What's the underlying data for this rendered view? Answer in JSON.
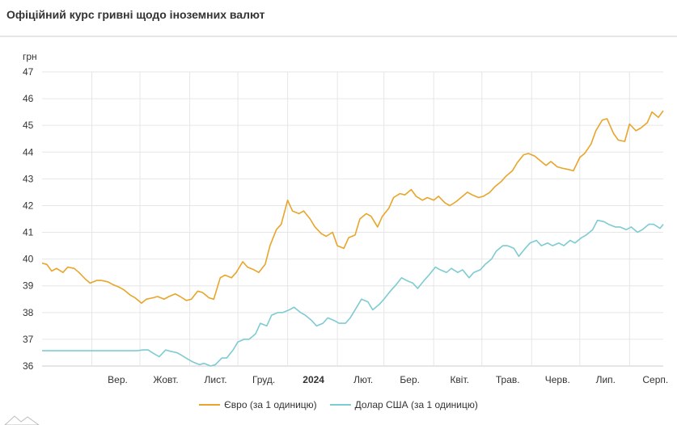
{
  "title": "Офіційний курс гривні щодо іноземних валют",
  "colors": {
    "euro": "#E8A52A",
    "usd": "#7ECBD2",
    "grid": "#e6e6e6"
  },
  "chart_data": {
    "type": "line",
    "ylabel": "грн",
    "ylim": [
      36,
      47
    ],
    "yticks": [
      36,
      37,
      38,
      39,
      40,
      41,
      42,
      43,
      44,
      45,
      46,
      47
    ],
    "x_range": [
      "2023-08-01",
      "2024-08-22"
    ],
    "x_ticks": [
      {
        "date": "2023-09-01",
        "label": "Вер.",
        "bold": false
      },
      {
        "date": "2023-10-01",
        "label": "Жовт.",
        "bold": false
      },
      {
        "date": "2023-11-01",
        "label": "Лист.",
        "bold": false
      },
      {
        "date": "2023-12-01",
        "label": "Груд.",
        "bold": false
      },
      {
        "date": "2024-01-01",
        "label": "2024",
        "bold": true
      },
      {
        "date": "2024-02-01",
        "label": "Лют.",
        "bold": false
      },
      {
        "date": "2024-03-01",
        "label": "Бер.",
        "bold": false
      },
      {
        "date": "2024-04-01",
        "label": "Квіт.",
        "bold": false
      },
      {
        "date": "2024-05-01",
        "label": "Трав.",
        "bold": false
      },
      {
        "date": "2024-06-01",
        "label": "Черв.",
        "bold": false
      },
      {
        "date": "2024-07-01",
        "label": "Лип.",
        "bold": false
      },
      {
        "date": "2024-08-01",
        "label": "Серп.",
        "bold": false
      }
    ],
    "series": [
      {
        "name": "Євро (за 1 одиницю)",
        "color": "#E8A52A",
        "points": [
          [
            "2023-08-01",
            39.85
          ],
          [
            "2023-08-04",
            39.8
          ],
          [
            "2023-08-07",
            39.55
          ],
          [
            "2023-08-10",
            39.65
          ],
          [
            "2023-08-14",
            39.5
          ],
          [
            "2023-08-17",
            39.7
          ],
          [
            "2023-08-21",
            39.65
          ],
          [
            "2023-08-24",
            39.5
          ],
          [
            "2023-08-28",
            39.25
          ],
          [
            "2023-08-31",
            39.1
          ],
          [
            "2023-09-04",
            39.2
          ],
          [
            "2023-09-07",
            39.2
          ],
          [
            "2023-09-11",
            39.15
          ],
          [
            "2023-09-14",
            39.05
          ],
          [
            "2023-09-18",
            38.95
          ],
          [
            "2023-09-21",
            38.85
          ],
          [
            "2023-09-25",
            38.65
          ],
          [
            "2023-09-28",
            38.55
          ],
          [
            "2023-10-02",
            38.35
          ],
          [
            "2023-10-05",
            38.5
          ],
          [
            "2023-10-09",
            38.55
          ],
          [
            "2023-10-12",
            38.6
          ],
          [
            "2023-10-16",
            38.5
          ],
          [
            "2023-10-19",
            38.6
          ],
          [
            "2023-10-23",
            38.7
          ],
          [
            "2023-10-26",
            38.6
          ],
          [
            "2023-10-30",
            38.45
          ],
          [
            "2023-11-02",
            38.5
          ],
          [
            "2023-11-06",
            38.8
          ],
          [
            "2023-11-09",
            38.75
          ],
          [
            "2023-11-13",
            38.55
          ],
          [
            "2023-11-16",
            38.5
          ],
          [
            "2023-11-20",
            39.3
          ],
          [
            "2023-11-23",
            39.4
          ],
          [
            "2023-11-27",
            39.3
          ],
          [
            "2023-11-30",
            39.5
          ],
          [
            "2023-12-04",
            39.9
          ],
          [
            "2023-12-07",
            39.7
          ],
          [
            "2023-12-11",
            39.6
          ],
          [
            "2023-12-14",
            39.5
          ],
          [
            "2023-12-18",
            39.8
          ],
          [
            "2023-12-21",
            40.5
          ],
          [
            "2023-12-25",
            41.1
          ],
          [
            "2023-12-28",
            41.3
          ],
          [
            "2024-01-01",
            42.2
          ],
          [
            "2024-01-04",
            41.8
          ],
          [
            "2024-01-08",
            41.7
          ],
          [
            "2024-01-11",
            41.8
          ],
          [
            "2024-01-15",
            41.5
          ],
          [
            "2024-01-18",
            41.2
          ],
          [
            "2024-01-22",
            40.95
          ],
          [
            "2024-01-25",
            40.85
          ],
          [
            "2024-01-29",
            41.0
          ],
          [
            "2024-02-01",
            40.5
          ],
          [
            "2024-02-05",
            40.4
          ],
          [
            "2024-02-08",
            40.8
          ],
          [
            "2024-02-12",
            40.9
          ],
          [
            "2024-02-15",
            41.5
          ],
          [
            "2024-02-19",
            41.7
          ],
          [
            "2024-02-22",
            41.6
          ],
          [
            "2024-02-26",
            41.2
          ],
          [
            "2024-02-29",
            41.6
          ],
          [
            "2024-03-04",
            41.9
          ],
          [
            "2024-03-07",
            42.3
          ],
          [
            "2024-03-11",
            42.45
          ],
          [
            "2024-03-14",
            42.4
          ],
          [
            "2024-03-18",
            42.6
          ],
          [
            "2024-03-21",
            42.35
          ],
          [
            "2024-03-25",
            42.2
          ],
          [
            "2024-03-28",
            42.3
          ],
          [
            "2024-04-01",
            42.2
          ],
          [
            "2024-04-04",
            42.35
          ],
          [
            "2024-04-08",
            42.1
          ],
          [
            "2024-04-11",
            42.0
          ],
          [
            "2024-04-15",
            42.15
          ],
          [
            "2024-04-18",
            42.3
          ],
          [
            "2024-04-22",
            42.5
          ],
          [
            "2024-04-25",
            42.4
          ],
          [
            "2024-04-29",
            42.3
          ],
          [
            "2024-05-02",
            42.35
          ],
          [
            "2024-05-06",
            42.5
          ],
          [
            "2024-05-09",
            42.7
          ],
          [
            "2024-05-13",
            42.9
          ],
          [
            "2024-05-16",
            43.1
          ],
          [
            "2024-05-20",
            43.3
          ],
          [
            "2024-05-23",
            43.6
          ],
          [
            "2024-05-27",
            43.9
          ],
          [
            "2024-05-30",
            43.95
          ],
          [
            "2024-06-03",
            43.85
          ],
          [
            "2024-06-06",
            43.7
          ],
          [
            "2024-06-10",
            43.5
          ],
          [
            "2024-06-13",
            43.65
          ],
          [
            "2024-06-17",
            43.45
          ],
          [
            "2024-06-20",
            43.4
          ],
          [
            "2024-06-24",
            43.35
          ],
          [
            "2024-06-27",
            43.3
          ],
          [
            "2024-07-01",
            43.8
          ],
          [
            "2024-07-04",
            43.95
          ],
          [
            "2024-07-08",
            44.3
          ],
          [
            "2024-07-11",
            44.8
          ],
          [
            "2024-07-15",
            45.2
          ],
          [
            "2024-07-18",
            45.25
          ],
          [
            "2024-07-22",
            44.7
          ],
          [
            "2024-07-25",
            44.45
          ],
          [
            "2024-07-29",
            44.4
          ],
          [
            "2024-08-01",
            45.05
          ],
          [
            "2024-08-05",
            44.8
          ],
          [
            "2024-08-08",
            44.9
          ],
          [
            "2024-08-12",
            45.1
          ],
          [
            "2024-08-15",
            45.5
          ],
          [
            "2024-08-19",
            45.3
          ],
          [
            "2024-08-22",
            45.55
          ]
        ]
      },
      {
        "name": "Долар США (за 1 одиницю)",
        "color": "#7ECBD2",
        "points": [
          [
            "2023-08-01",
            36.57
          ],
          [
            "2023-08-20",
            36.57
          ],
          [
            "2023-09-10",
            36.57
          ],
          [
            "2023-09-29",
            36.57
          ],
          [
            "2023-10-03",
            36.6
          ],
          [
            "2023-10-06",
            36.6
          ],
          [
            "2023-10-10",
            36.45
          ],
          [
            "2023-10-13",
            36.35
          ],
          [
            "2023-10-17",
            36.6
          ],
          [
            "2023-10-20",
            36.55
          ],
          [
            "2023-10-24",
            36.5
          ],
          [
            "2023-10-27",
            36.4
          ],
          [
            "2023-10-31",
            36.25
          ],
          [
            "2023-11-03",
            36.15
          ],
          [
            "2023-11-07",
            36.05
          ],
          [
            "2023-11-10",
            36.1
          ],
          [
            "2023-11-14",
            36.0
          ],
          [
            "2023-11-17",
            36.05
          ],
          [
            "2023-11-21",
            36.3
          ],
          [
            "2023-11-24",
            36.3
          ],
          [
            "2023-11-28",
            36.6
          ],
          [
            "2023-12-01",
            36.9
          ],
          [
            "2023-12-05",
            37.0
          ],
          [
            "2023-12-08",
            37.0
          ],
          [
            "2023-12-12",
            37.2
          ],
          [
            "2023-12-15",
            37.6
          ],
          [
            "2023-12-19",
            37.5
          ],
          [
            "2023-12-22",
            37.9
          ],
          [
            "2023-12-26",
            38.0
          ],
          [
            "2023-12-29",
            38.0
          ],
          [
            "2024-01-02",
            38.1
          ],
          [
            "2024-01-05",
            38.2
          ],
          [
            "2024-01-09",
            38.0
          ],
          [
            "2024-01-12",
            37.9
          ],
          [
            "2024-01-16",
            37.7
          ],
          [
            "2024-01-19",
            37.5
          ],
          [
            "2024-01-23",
            37.6
          ],
          [
            "2024-01-26",
            37.8
          ],
          [
            "2024-01-30",
            37.7
          ],
          [
            "2024-02-02",
            37.6
          ],
          [
            "2024-02-06",
            37.6
          ],
          [
            "2024-02-09",
            37.8
          ],
          [
            "2024-02-13",
            38.2
          ],
          [
            "2024-02-16",
            38.5
          ],
          [
            "2024-02-20",
            38.4
          ],
          [
            "2024-02-23",
            38.1
          ],
          [
            "2024-02-27",
            38.3
          ],
          [
            "2024-03-01",
            38.5
          ],
          [
            "2024-03-05",
            38.8
          ],
          [
            "2024-03-08",
            39.0
          ],
          [
            "2024-03-12",
            39.3
          ],
          [
            "2024-03-15",
            39.2
          ],
          [
            "2024-03-19",
            39.1
          ],
          [
            "2024-03-22",
            38.9
          ],
          [
            "2024-03-26",
            39.2
          ],
          [
            "2024-03-29",
            39.4
          ],
          [
            "2024-04-02",
            39.7
          ],
          [
            "2024-04-05",
            39.6
          ],
          [
            "2024-04-09",
            39.5
          ],
          [
            "2024-04-12",
            39.65
          ],
          [
            "2024-04-16",
            39.5
          ],
          [
            "2024-04-19",
            39.6
          ],
          [
            "2024-04-23",
            39.3
          ],
          [
            "2024-04-26",
            39.5
          ],
          [
            "2024-04-30",
            39.6
          ],
          [
            "2024-05-03",
            39.8
          ],
          [
            "2024-05-07",
            40.0
          ],
          [
            "2024-05-10",
            40.3
          ],
          [
            "2024-05-14",
            40.5
          ],
          [
            "2024-05-17",
            40.5
          ],
          [
            "2024-05-21",
            40.4
          ],
          [
            "2024-05-24",
            40.1
          ],
          [
            "2024-05-28",
            40.4
          ],
          [
            "2024-05-31",
            40.6
          ],
          [
            "2024-06-04",
            40.7
          ],
          [
            "2024-06-07",
            40.5
          ],
          [
            "2024-06-11",
            40.6
          ],
          [
            "2024-06-14",
            40.5
          ],
          [
            "2024-06-18",
            40.6
          ],
          [
            "2024-06-21",
            40.5
          ],
          [
            "2024-06-25",
            40.7
          ],
          [
            "2024-06-28",
            40.6
          ],
          [
            "2024-07-02",
            40.8
          ],
          [
            "2024-07-05",
            40.9
          ],
          [
            "2024-07-09",
            41.1
          ],
          [
            "2024-07-12",
            41.45
          ],
          [
            "2024-07-16",
            41.4
          ],
          [
            "2024-07-19",
            41.3
          ],
          [
            "2024-07-23",
            41.2
          ],
          [
            "2024-07-26",
            41.2
          ],
          [
            "2024-07-30",
            41.1
          ],
          [
            "2024-08-02",
            41.2
          ],
          [
            "2024-08-06",
            41.0
          ],
          [
            "2024-08-09",
            41.1
          ],
          [
            "2024-08-13",
            41.3
          ],
          [
            "2024-08-16",
            41.3
          ],
          [
            "2024-08-20",
            41.15
          ],
          [
            "2024-08-22",
            41.3
          ]
        ]
      }
    ]
  }
}
